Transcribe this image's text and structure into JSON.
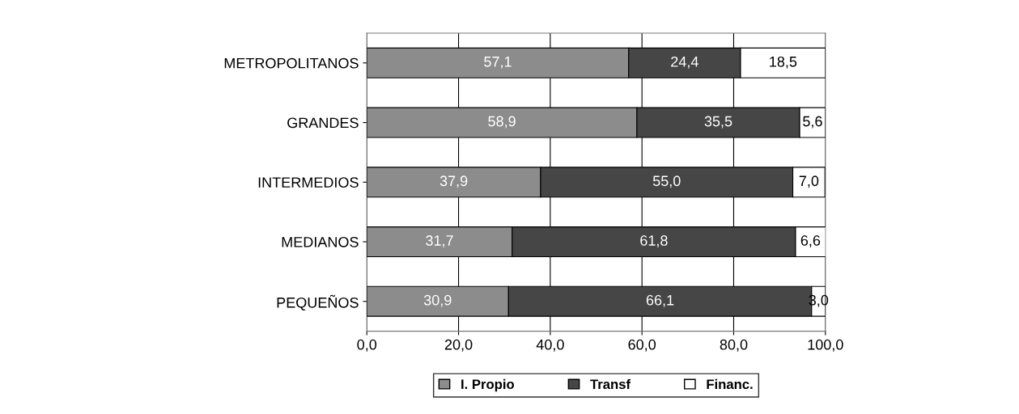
{
  "chart_data": {
    "type": "bar",
    "orientation": "horizontal",
    "stacked": true,
    "categories": [
      "METROPOLITANOS",
      "GRANDES",
      "INTERMEDIOS",
      "MEDIANOS",
      "PEQUEÑOS"
    ],
    "series": [
      {
        "name": "I. Propio",
        "color": "#8c8c8c",
        "values": [
          57.1,
          58.9,
          37.9,
          31.7,
          30.9
        ],
        "value_labels": [
          "57,1",
          "58,9",
          "37,9",
          "31,7",
          "30,9"
        ]
      },
      {
        "name": "Transf",
        "color": "#464646",
        "values": [
          24.4,
          35.5,
          55.0,
          61.8,
          66.1
        ],
        "value_labels": [
          "24,4",
          "35,5",
          "55,0",
          "61,8",
          "66,1"
        ]
      },
      {
        "name": "Financ.",
        "color": "#ffffff",
        "values": [
          18.5,
          5.6,
          7.0,
          6.6,
          3.0
        ],
        "value_labels": [
          "18,5",
          "5,6",
          "7,0",
          "6,6",
          "3,0"
        ]
      }
    ],
    "xlim": [
      0,
      100
    ],
    "xticks": [
      {
        "value": 0,
        "label": "0,0"
      },
      {
        "value": 20,
        "label": "20,0"
      },
      {
        "value": 40,
        "label": "40,0"
      },
      {
        "value": 60,
        "label": "60,0"
      },
      {
        "value": 80,
        "label": "80,0"
      },
      {
        "value": 100,
        "label": "100,0"
      }
    ],
    "grid": "x",
    "legend": "bottom"
  }
}
